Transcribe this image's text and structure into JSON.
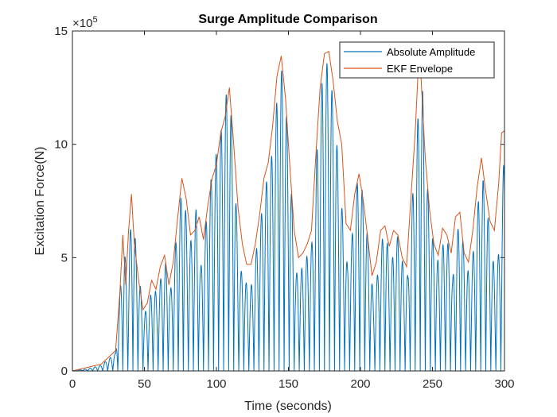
{
  "chart_data": {
    "type": "line",
    "title": "Surge Amplitude Comparison",
    "xlabel": "Time (seconds)",
    "ylabel": "Excitation Force(N)",
    "xlim": [
      0,
      300
    ],
    "ylim": [
      0,
      1500000
    ],
    "xticks": [
      0,
      50,
      100,
      150,
      200,
      250,
      300
    ],
    "yticks": [
      0,
      500000,
      1000000,
      1500000
    ],
    "xtick_labels": [
      "0",
      "50",
      "100",
      "150",
      "200",
      "250",
      "300"
    ],
    "ytick_labels": [
      "0",
      "5",
      "10",
      "15"
    ],
    "y_exponent": {
      "base": "×10",
      "power": "5"
    },
    "grid": false,
    "legend_position": "top-right",
    "series": [
      {
        "name": "Absolute Amplitude",
        "color": "#0072BD",
        "period": 3.5,
        "envelope_points": [
          [
            0,
            1000
          ],
          [
            10,
            8000
          ],
          [
            20,
            25000
          ],
          [
            30,
            80000
          ],
          [
            33,
            350000
          ],
          [
            36,
            560000
          ],
          [
            38,
            380000
          ],
          [
            40,
            600000
          ],
          [
            42,
            750000
          ],
          [
            44,
            550000
          ],
          [
            47,
            380000
          ],
          [
            50,
            250000
          ],
          [
            53,
            300000
          ],
          [
            56,
            380000
          ],
          [
            59,
            330000
          ],
          [
            62,
            430000
          ],
          [
            65,
            480000
          ],
          [
            68,
            350000
          ],
          [
            70,
            450000
          ],
          [
            73,
            640000
          ],
          [
            76,
            800000
          ],
          [
            78,
            780000
          ],
          [
            80,
            560000
          ],
          [
            83,
            580000
          ],
          [
            86,
            720000
          ],
          [
            89,
            450000
          ],
          [
            92,
            600000
          ],
          [
            95,
            820000
          ],
          [
            98,
            880000
          ],
          [
            101,
            1010000
          ],
          [
            104,
            1080000
          ],
          [
            107,
            1230000
          ],
          [
            110,
            1150000
          ],
          [
            113,
            820000
          ],
          [
            116,
            440000
          ],
          [
            119,
            440000
          ],
          [
            122,
            350000
          ],
          [
            125,
            390000
          ],
          [
            128,
            550000
          ],
          [
            131,
            680000
          ],
          [
            134,
            820000
          ],
          [
            137,
            880000
          ],
          [
            140,
            1040000
          ],
          [
            143,
            1280000
          ],
          [
            146,
            1340000
          ],
          [
            149,
            1100000
          ],
          [
            152,
            800000
          ],
          [
            155,
            430000
          ],
          [
            158,
            440000
          ],
          [
            161,
            470000
          ],
          [
            164,
            530000
          ],
          [
            167,
            580000
          ],
          [
            170,
            1000000
          ],
          [
            173,
            1260000
          ],
          [
            176,
            1370000
          ],
          [
            179,
            1320000
          ],
          [
            182,
            1120000
          ],
          [
            185,
            900000
          ],
          [
            188,
            650000
          ],
          [
            191,
            460000
          ],
          [
            194,
            580000
          ],
          [
            197,
            820000
          ],
          [
            200,
            860000
          ],
          [
            203,
            700000
          ],
          [
            206,
            540000
          ],
          [
            209,
            320000
          ],
          [
            212,
            430000
          ],
          [
            215,
            580000
          ],
          [
            218,
            600000
          ],
          [
            221,
            440000
          ],
          [
            224,
            580000
          ],
          [
            227,
            600000
          ],
          [
            230,
            440000
          ],
          [
            233,
            420000
          ],
          [
            236,
            760000
          ],
          [
            239,
            980000
          ],
          [
            241,
            1300000
          ],
          [
            243,
            1260000
          ],
          [
            246,
            850000
          ],
          [
            249,
            640000
          ],
          [
            252,
            500000
          ],
          [
            255,
            480000
          ],
          [
            258,
            580000
          ],
          [
            261,
            560000
          ],
          [
            264,
            400000
          ],
          [
            267,
            620000
          ],
          [
            270,
            640000
          ],
          [
            273,
            470000
          ],
          [
            276,
            420000
          ],
          [
            279,
            560000
          ],
          [
            282,
            760000
          ],
          [
            285,
            850000
          ],
          [
            288,
            720000
          ],
          [
            291,
            520000
          ],
          [
            294,
            430000
          ],
          [
            297,
            570000
          ],
          [
            300,
            1000000
          ]
        ]
      },
      {
        "name": "EKF Envelope",
        "color": "#D95319",
        "envelope_points": [
          [
            0,
            0
          ],
          [
            10,
            15000
          ],
          [
            20,
            30000
          ],
          [
            30,
            90000
          ],
          [
            33,
            350000
          ],
          [
            35,
            600000
          ],
          [
            37,
            380000
          ],
          [
            39,
            620000
          ],
          [
            41,
            780000
          ],
          [
            43,
            560000
          ],
          [
            46,
            400000
          ],
          [
            49,
            270000
          ],
          [
            52,
            300000
          ],
          [
            55,
            400000
          ],
          [
            58,
            360000
          ],
          [
            61,
            460000
          ],
          [
            64,
            510000
          ],
          [
            67,
            380000
          ],
          [
            70,
            480000
          ],
          [
            73,
            670000
          ],
          [
            76,
            850000
          ],
          [
            79,
            760000
          ],
          [
            82,
            600000
          ],
          [
            85,
            620000
          ],
          [
            88,
            680000
          ],
          [
            91,
            580000
          ],
          [
            94,
            730000
          ],
          [
            97,
            850000
          ],
          [
            100,
            910000
          ],
          [
            103,
            1050000
          ],
          [
            106,
            1120000
          ],
          [
            109,
            1250000
          ],
          [
            112,
            1000000
          ],
          [
            115,
            720000
          ],
          [
            118,
            560000
          ],
          [
            121,
            470000
          ],
          [
            124,
            470000
          ],
          [
            127,
            560000
          ],
          [
            130,
            690000
          ],
          [
            133,
            850000
          ],
          [
            136,
            920000
          ],
          [
            139,
            1080000
          ],
          [
            142,
            1300000
          ],
          [
            145,
            1390000
          ],
          [
            148,
            1200000
          ],
          [
            151,
            900000
          ],
          [
            154,
            620000
          ],
          [
            157,
            500000
          ],
          [
            160,
            520000
          ],
          [
            163,
            560000
          ],
          [
            166,
            620000
          ],
          [
            169,
            950000
          ],
          [
            172,
            1250000
          ],
          [
            175,
            1400000
          ],
          [
            178,
            1410000
          ],
          [
            181,
            1280000
          ],
          [
            184,
            1100000
          ],
          [
            187,
            1000000
          ],
          [
            190,
            650000
          ],
          [
            193,
            620000
          ],
          [
            196,
            780000
          ],
          [
            199,
            870000
          ],
          [
            202,
            750000
          ],
          [
            205,
            590000
          ],
          [
            208,
            420000
          ],
          [
            211,
            480000
          ],
          [
            214,
            620000
          ],
          [
            217,
            640000
          ],
          [
            220,
            550000
          ],
          [
            223,
            620000
          ],
          [
            226,
            600000
          ],
          [
            229,
            500000
          ],
          [
            232,
            460000
          ],
          [
            235,
            760000
          ],
          [
            238,
            1050000
          ],
          [
            240,
            1320000
          ],
          [
            242,
            1300000
          ],
          [
            245,
            940000
          ],
          [
            248,
            710000
          ],
          [
            251,
            560000
          ],
          [
            254,
            510000
          ],
          [
            257,
            630000
          ],
          [
            260,
            600000
          ],
          [
            263,
            520000
          ],
          [
            266,
            680000
          ],
          [
            269,
            700000
          ],
          [
            272,
            520000
          ],
          [
            275,
            480000
          ],
          [
            278,
            620000
          ],
          [
            281,
            810000
          ],
          [
            284,
            940000
          ],
          [
            287,
            790000
          ],
          [
            290,
            660000
          ],
          [
            293,
            620000
          ],
          [
            296,
            830000
          ],
          [
            298,
            1050000
          ],
          [
            300,
            1060000
          ]
        ]
      }
    ]
  }
}
